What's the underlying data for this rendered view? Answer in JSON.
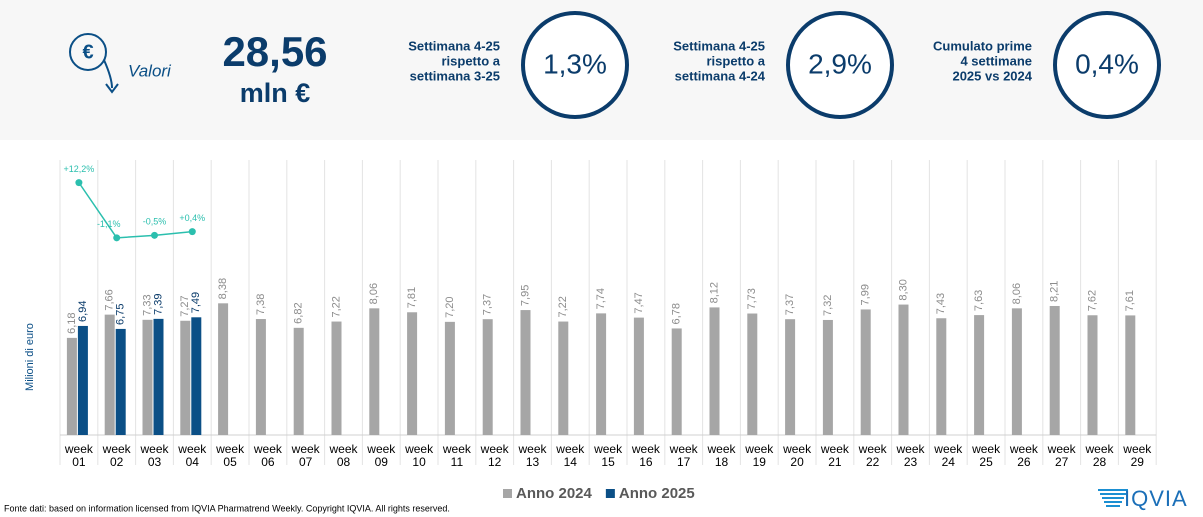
{
  "header": {
    "icon": "€",
    "label": "Valori",
    "total": "28,56",
    "unit": "mln €",
    "kpis": [
      {
        "lines": [
          "Settimana 4-25",
          "rispetto a",
          "settimana 3-25"
        ],
        "value": "1,3%"
      },
      {
        "lines": [
          "Settimana 4-25",
          "rispetto a",
          "settimana 4-24"
        ],
        "value": "2,9%"
      },
      {
        "lines": [
          "Cumulato prime",
          "4 settimane",
          "2025 vs 2024"
        ],
        "value": "0,4%"
      }
    ]
  },
  "chart_data": {
    "type": "bar",
    "ylabel": "Milioni di euro",
    "categories": [
      "week 01",
      "week 02",
      "week 03",
      "week 04",
      "week 05",
      "week 06",
      "week 07",
      "week 08",
      "week 09",
      "week 10",
      "week 11",
      "week 12",
      "week 13",
      "week 14",
      "week 15",
      "week 16",
      "week 17",
      "week 18",
      "week 19",
      "week 20",
      "week 21",
      "week 22",
      "week 23",
      "week 24",
      "week 25",
      "week 26",
      "week 27",
      "week 28",
      "week 29"
    ],
    "ylim": [
      0,
      17.5
    ],
    "y2lim": [
      -5,
      15
    ],
    "series": [
      {
        "name": "Anno 2024",
        "color": "#a6a6a6",
        "values": [
          6.18,
          7.66,
          7.33,
          7.27,
          8.38,
          7.38,
          6.82,
          7.22,
          8.06,
          7.81,
          7.2,
          7.37,
          7.95,
          7.22,
          7.74,
          7.47,
          6.78,
          8.12,
          7.73,
          7.37,
          7.32,
          7.99,
          8.3,
          7.43,
          7.63,
          8.06,
          8.21,
          7.62,
          7.61
        ],
        "value_labels": [
          "6,18",
          "7,66",
          "7,33",
          "7,27",
          "8,38",
          "7,38",
          "6,82",
          "7,22",
          "8,06",
          "7,81",
          "7,20",
          "7,37",
          "7,95",
          "7,22",
          "7,74",
          "7,47",
          "6,78",
          "8,12",
          "7,73",
          "7,37",
          "7,32",
          "7,99",
          "8,30",
          "7,43",
          "7,63",
          "8,06",
          "8,21",
          "7,62",
          "7,61"
        ]
      },
      {
        "name": "Anno 2025",
        "color": "#0b4f86",
        "values": [
          6.94,
          6.75,
          7.39,
          7.49,
          null,
          null,
          null,
          null,
          null,
          null,
          null,
          null,
          null,
          null,
          null,
          null,
          null,
          null,
          null,
          null,
          null,
          null,
          null,
          null,
          null,
          null,
          null,
          null,
          null
        ],
        "value_labels": [
          "6,94",
          "6,75",
          "7,39",
          "7,49",
          null,
          null,
          null,
          null,
          null,
          null,
          null,
          null,
          null,
          null,
          null,
          null,
          null,
          null,
          null,
          null,
          null,
          null,
          null,
          null,
          null,
          null,
          null,
          null,
          null
        ]
      }
    ],
    "line": {
      "axis": "y2",
      "color": "#2bbfae",
      "values": [
        12.2,
        -1.1,
        -0.5,
        0.4
      ],
      "value_labels": [
        "+12,2%",
        "-1,1%",
        "-0,5%",
        "+0,4%"
      ]
    },
    "legend": "bottom"
  },
  "footer": {
    "source": "Fonte dati: based on information licensed from IQVIA Pharmatrend Weekly. Copyright IQVIA. All rights reserved.",
    "logo": "IQVIA"
  }
}
